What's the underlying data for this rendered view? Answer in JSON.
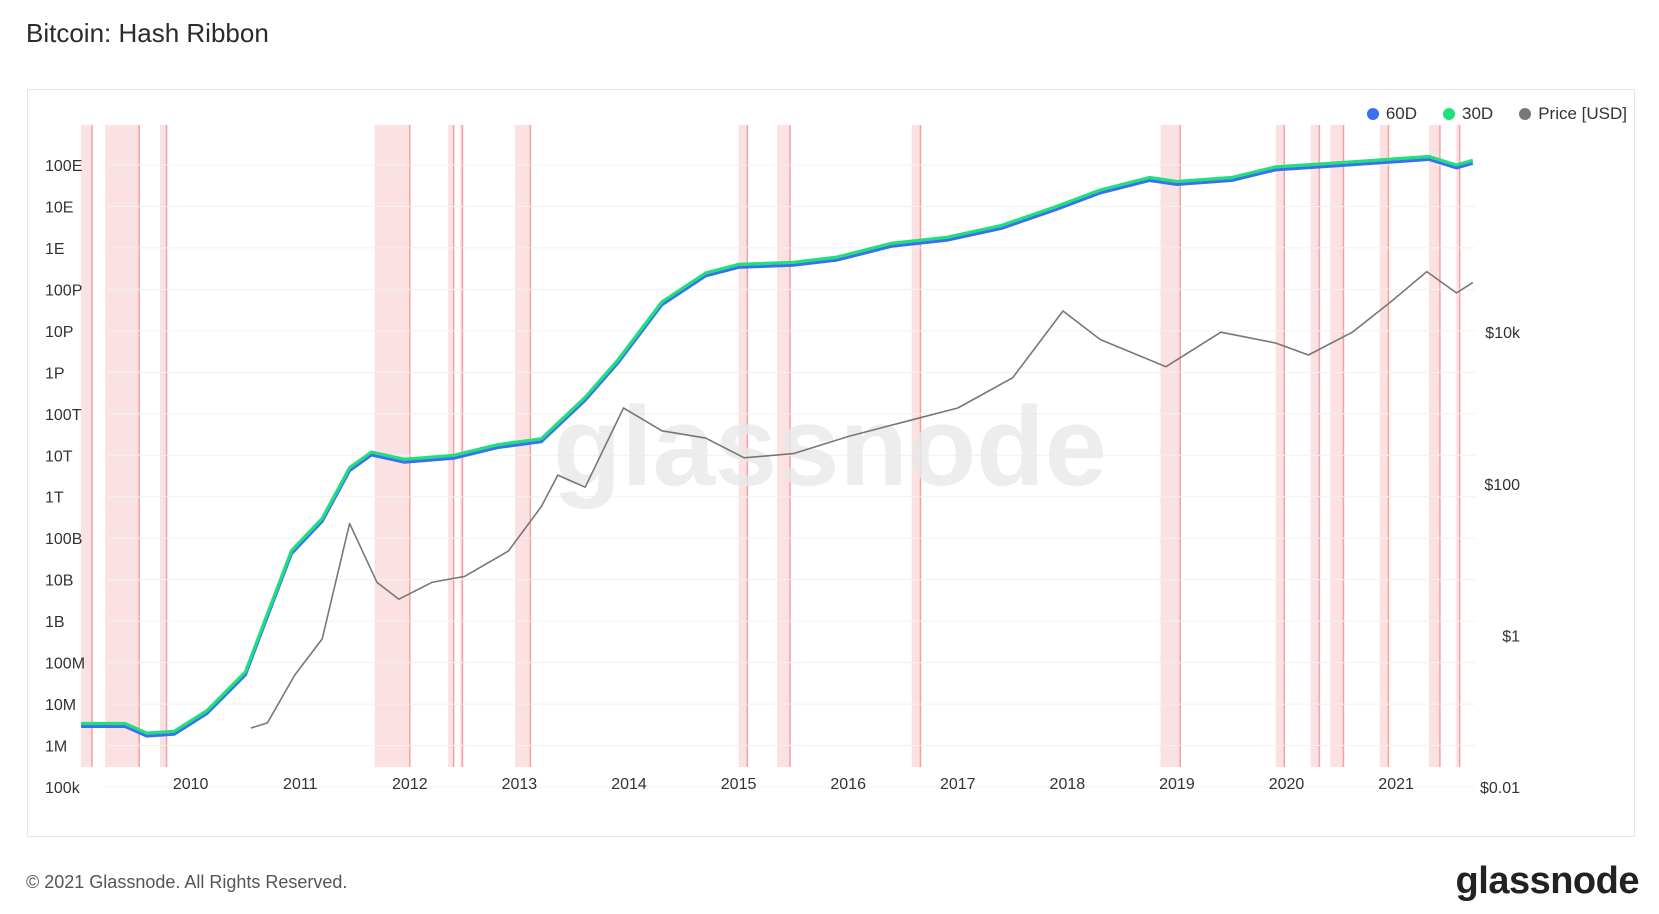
{
  "header": {
    "title": "Bitcoin: Hash Ribbon"
  },
  "footer": {
    "copyright": "© 2021 Glassnode. All Rights Reserved.",
    "logo": "glassnode"
  },
  "watermark": "glassnode",
  "chart_data": {
    "type": "line",
    "title": "Bitcoin: Hash Ribbon",
    "x_range": [
      "2009-03-01",
      "2021-09-25"
    ],
    "x_ticks": [
      "2010",
      "2011",
      "2012",
      "2013",
      "2014",
      "2015",
      "2016",
      "2017",
      "2018",
      "2019",
      "2020",
      "2021"
    ],
    "y_left": {
      "scale": "log",
      "ticks": [
        "100k",
        "1M",
        "10M",
        "100M",
        "1B",
        "10B",
        "100B",
        "1T",
        "10T",
        "100T",
        "1P",
        "10P",
        "100P",
        "1E",
        "10E",
        "100E"
      ],
      "range": [
        "100k",
        "100E"
      ]
    },
    "y_right": {
      "scale": "log",
      "ticks": [
        "$0.01",
        "$1",
        "$100",
        "$10k"
      ],
      "range": [
        "$0.01",
        "$1M"
      ]
    },
    "legend": [
      {
        "name": "60D",
        "color": "#3b6ff2"
      },
      {
        "name": "30D",
        "color": "#1ee07c"
      },
      {
        "name": "Price [USD]",
        "color": "#777777"
      }
    ],
    "legend_position": "top-right",
    "capitulation_band_color": "#f8c9c9",
    "signal_line_color": "#ef8f8f",
    "hash_rate_30d": [
      [
        "2009.00",
        "3.4M"
      ],
      [
        "2009.40",
        "3.4M"
      ],
      [
        "2009.60",
        "2M"
      ],
      [
        "2009.85",
        "2.2M"
      ],
      [
        "2010.15",
        "7M"
      ],
      [
        "2010.50",
        "60M"
      ],
      [
        "2010.70",
        "1.5B"
      ],
      [
        "2010.92",
        "50B"
      ],
      [
        "2011.20",
        "300B"
      ],
      [
        "2011.45",
        "5T"
      ],
      [
        "2011.65",
        "12T"
      ],
      [
        "2011.95",
        "8T"
      ],
      [
        "2012.40",
        "10T"
      ],
      [
        "2012.80",
        "18T"
      ],
      [
        "2013.20",
        "25T"
      ],
      [
        "2013.60",
        "250T"
      ],
      [
        "2013.90",
        "2P"
      ],
      [
        "2014.30",
        "50P"
      ],
      [
        "2014.70",
        "250P"
      ],
      [
        "2015.00",
        "400P"
      ],
      [
        "2015.50",
        "450P"
      ],
      [
        "2015.90",
        "600P"
      ],
      [
        "2016.40",
        "1.3E"
      ],
      [
        "2016.90",
        "1.8E"
      ],
      [
        "2017.40",
        "3.5E"
      ],
      [
        "2017.90",
        "10E"
      ],
      [
        "2018.30",
        "25E"
      ],
      [
        "2018.75",
        "50E"
      ],
      [
        "2019.00",
        "40E"
      ],
      [
        "2019.50",
        "50E"
      ],
      [
        "2019.90",
        "90E"
      ],
      [
        "2020.40",
        "110E"
      ],
      [
        "2020.80",
        "130E"
      ],
      [
        "2021.30",
        "160E"
      ],
      [
        "2021.55",
        "100E"
      ],
      [
        "2021.70",
        "130E"
      ]
    ],
    "price_usd": [
      [
        "2010.55",
        "$0.06"
      ],
      [
        "2010.70",
        "$0.07"
      ],
      [
        "2010.95",
        "$0.3"
      ],
      [
        "2011.20",
        "$0.9"
      ],
      [
        "2011.45",
        "$30"
      ],
      [
        "2011.70",
        "$5"
      ],
      [
        "2011.90",
        "$3"
      ],
      [
        "2012.20",
        "$5"
      ],
      [
        "2012.50",
        "$6"
      ],
      [
        "2012.90",
        "$13"
      ],
      [
        "2013.20",
        "$50"
      ],
      [
        "2013.35",
        "$130"
      ],
      [
        "2013.60",
        "$90"
      ],
      [
        "2013.95",
        "$1000"
      ],
      [
        "2014.30",
        "$500"
      ],
      [
        "2014.70",
        "$400"
      ],
      [
        "2015.05",
        "$220"
      ],
      [
        "2015.50",
        "$250"
      ],
      [
        "2016.00",
        "$420"
      ],
      [
        "2016.50",
        "$650"
      ],
      [
        "2017.00",
        "$1000"
      ],
      [
        "2017.50",
        "$2500"
      ],
      [
        "2017.96",
        "$19000"
      ],
      [
        "2018.30",
        "$8000"
      ],
      [
        "2018.90",
        "$3500"
      ],
      [
        "2019.40",
        "$10000"
      ],
      [
        "2019.90",
        "$7200"
      ],
      [
        "2020.20",
        "$5000"
      ],
      [
        "2020.60",
        "$10000"
      ],
      [
        "2020.95",
        "$25000"
      ],
      [
        "2021.28",
        "$63000"
      ],
      [
        "2021.55",
        "$33000"
      ],
      [
        "2021.70",
        "$45000"
      ]
    ],
    "capitulation_periods": [
      [
        "2009.00",
        "2009.10"
      ],
      [
        "2009.22",
        "2009.53"
      ],
      [
        "2009.72",
        "2009.78"
      ],
      [
        "2011.68",
        "2012.00"
      ],
      [
        "2012.35",
        "2012.40"
      ],
      [
        "2012.46",
        "2012.48"
      ],
      [
        "2012.96",
        "2013.10"
      ],
      [
        "2015.00",
        "2015.08"
      ],
      [
        "2015.35",
        "2015.47"
      ],
      [
        "2016.58",
        "2016.66"
      ],
      [
        "2018.85",
        "2019.03"
      ],
      [
        "2019.90",
        "2019.98"
      ],
      [
        "2020.22",
        "2020.30"
      ],
      [
        "2020.40",
        "2020.52"
      ],
      [
        "2020.85",
        "2020.93"
      ],
      [
        "2021.30",
        "2021.40"
      ],
      [
        "2021.55",
        "2021.58"
      ]
    ]
  }
}
